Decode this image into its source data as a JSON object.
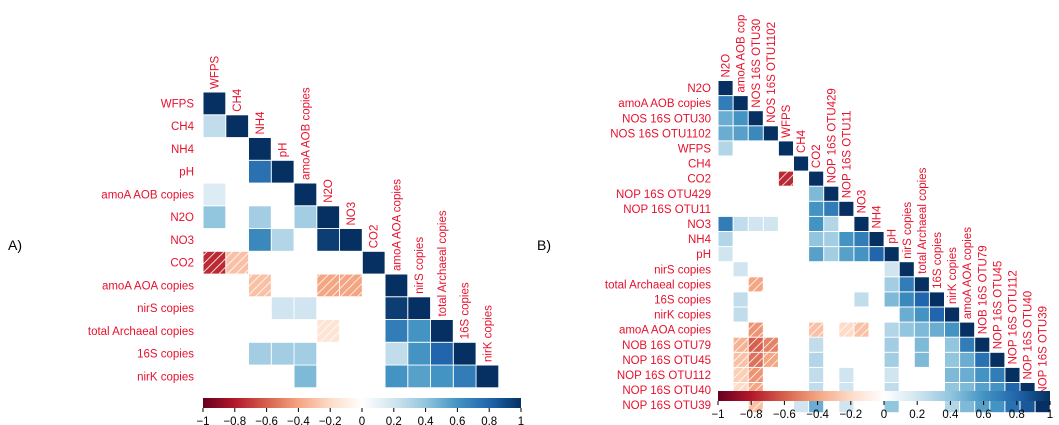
{
  "chart_data": [
    {
      "type": "heatmap",
      "panel_label": "A)",
      "variables": [
        "WFPS",
        "CH4",
        "NH4",
        "pH",
        "amoA AOB copies",
        "N2O",
        "NO3",
        "CO2",
        "amoA AOA copies",
        "nirS copies",
        "total Archaeal copies",
        "16S copies",
        "nirK copies"
      ],
      "colorbar_ticks": [
        "−1",
        "−0.8",
        "−0.6",
        "−0.4",
        "−0.2",
        "0",
        "0.2",
        "0.4",
        "0.6",
        "0.8",
        "1"
      ],
      "color_range": [
        -1,
        1
      ],
      "cells": [
        [
          0,
          0,
          1
        ],
        [
          1,
          1,
          1
        ],
        [
          2,
          2,
          1
        ],
        [
          3,
          3,
          1
        ],
        [
          4,
          4,
          1
        ],
        [
          5,
          5,
          1
        ],
        [
          6,
          6,
          1
        ],
        [
          7,
          7,
          1
        ],
        [
          8,
          8,
          1
        ],
        [
          9,
          9,
          1
        ],
        [
          10,
          10,
          1
        ],
        [
          11,
          11,
          1
        ],
        [
          12,
          12,
          1
        ],
        [
          1,
          0,
          0.25
        ],
        [
          3,
          2,
          0.75
        ],
        [
          4,
          0,
          0.15
        ],
        [
          5,
          0,
          0.4
        ],
        [
          5,
          2,
          0.35
        ],
        [
          5,
          4,
          0.35
        ],
        [
          6,
          2,
          0.65
        ],
        [
          6,
          3,
          0.3
        ],
        [
          6,
          5,
          0.95
        ],
        [
          7,
          0,
          -0.75
        ],
        [
          7,
          1,
          -0.3
        ],
        [
          8,
          2,
          -0.3
        ],
        [
          8,
          5,
          -0.4
        ],
        [
          8,
          6,
          -0.4
        ],
        [
          9,
          3,
          0.2
        ],
        [
          9,
          4,
          0.2
        ],
        [
          9,
          8,
          0.95
        ],
        [
          10,
          5,
          -0.15
        ],
        [
          10,
          8,
          0.7
        ],
        [
          10,
          9,
          0.6
        ],
        [
          11,
          2,
          0.35
        ],
        [
          11,
          3,
          0.35
        ],
        [
          11,
          4,
          0.35
        ],
        [
          11,
          8,
          0.25
        ],
        [
          11,
          9,
          0.6
        ],
        [
          11,
          10,
          0.8
        ],
        [
          12,
          4,
          0.45
        ],
        [
          12,
          8,
          0.6
        ],
        [
          12,
          9,
          0.55
        ],
        [
          12,
          10,
          0.6
        ],
        [
          12,
          11,
          0.7
        ]
      ]
    },
    {
      "type": "heatmap",
      "panel_label": "B)",
      "variables": [
        "N2O",
        "amoA AOB copies",
        "NOS 16S OTU30",
        "NOS 16S OTU1102",
        "WFPS",
        "CH4",
        "CO2",
        "NOP 16S OTU429",
        "NOP 16S OTU11",
        "NO3",
        "NH4",
        "pH",
        "nirS copies",
        "total Archaeal copies",
        "16S copies",
        "nirK copies",
        "amoA AOA copies",
        "NOB 16S OTU79",
        "NOP 16S OTU45",
        "NOP 16S OTU112",
        "NOP 16S OTU40",
        "NOP 16S OTU39"
      ],
      "column_labels": [
        "N2O",
        "amoA AOB cop",
        "NOS 16S OTU30",
        "NOS 16S OTU1102",
        "WFPS",
        "CH4",
        "CO2",
        "NOP 16S OTU429",
        "NOP 16S OTU11",
        "NO3",
        "NH4",
        "pH",
        "nirS copies",
        "total Archaeal copies",
        "16S copies",
        "nirK copies",
        "amoA AOA copies",
        "NOB 16S OTU79",
        "NOP 16S OTU45",
        "NOP 16S OTU112",
        "NOP 16S OTU40",
        "NOP 16S OTU39"
      ],
      "colorbar_ticks": [
        "−1",
        "−0.8",
        "−0.6",
        "−0.4",
        "−0.2",
        "0",
        "0.2",
        "0.4",
        "0.6",
        "0.8",
        "1"
      ],
      "color_range": [
        -1,
        1
      ],
      "cells": [
        [
          0,
          0,
          1
        ],
        [
          1,
          1,
          1
        ],
        [
          2,
          2,
          1
        ],
        [
          3,
          3,
          1
        ],
        [
          4,
          4,
          1
        ],
        [
          5,
          5,
          1
        ],
        [
          6,
          6,
          1
        ],
        [
          7,
          7,
          1
        ],
        [
          8,
          8,
          1
        ],
        [
          9,
          9,
          1
        ],
        [
          10,
          10,
          1
        ],
        [
          11,
          11,
          1
        ],
        [
          12,
          12,
          1
        ],
        [
          13,
          13,
          1
        ],
        [
          14,
          14,
          1
        ],
        [
          15,
          15,
          1
        ],
        [
          16,
          16,
          1
        ],
        [
          17,
          17,
          1
        ],
        [
          18,
          18,
          1
        ],
        [
          19,
          19,
          1
        ],
        [
          20,
          20,
          1
        ],
        [
          21,
          21,
          1
        ],
        [
          1,
          0,
          0.7
        ],
        [
          2,
          0,
          0.5
        ],
        [
          2,
          1,
          0.6
        ],
        [
          3,
          0,
          0.5
        ],
        [
          3,
          1,
          0.55
        ],
        [
          3,
          2,
          0.65
        ],
        [
          4,
          0,
          0.3
        ],
        [
          6,
          4,
          -0.75
        ],
        [
          7,
          6,
          0.45
        ],
        [
          8,
          6,
          0.6
        ],
        [
          8,
          7,
          0.7
        ],
        [
          9,
          0,
          0.7
        ],
        [
          9,
          1,
          0.25
        ],
        [
          9,
          2,
          0.2
        ],
        [
          9,
          3,
          0.2
        ],
        [
          9,
          6,
          0.6
        ],
        [
          9,
          7,
          0.3
        ],
        [
          10,
          0,
          0.3
        ],
        [
          10,
          6,
          0.4
        ],
        [
          10,
          7,
          0.35
        ],
        [
          10,
          8,
          0.6
        ],
        [
          10,
          9,
          0.7
        ],
        [
          11,
          0,
          0.2
        ],
        [
          11,
          6,
          0.55
        ],
        [
          11,
          7,
          0.35
        ],
        [
          11,
          8,
          0.55
        ],
        [
          11,
          9,
          0.6
        ],
        [
          11,
          10,
          0.8
        ],
        [
          12,
          1,
          0.2
        ],
        [
          12,
          11,
          0.2
        ],
        [
          13,
          2,
          -0.4
        ],
        [
          13,
          11,
          0.35
        ],
        [
          13,
          12,
          0.7
        ],
        [
          14,
          1,
          0.25
        ],
        [
          14,
          9,
          0.25
        ],
        [
          14,
          11,
          0.45
        ],
        [
          14,
          12,
          0.65
        ],
        [
          14,
          13,
          0.8
        ],
        [
          15,
          1,
          0.25
        ],
        [
          15,
          12,
          0.5
        ],
        [
          15,
          13,
          0.6
        ],
        [
          15,
          14,
          0.8
        ],
        [
          16,
          2,
          -0.45
        ],
        [
          16,
          6,
          -0.3
        ],
        [
          16,
          8,
          -0.2
        ],
        [
          16,
          9,
          -0.3
        ],
        [
          16,
          11,
          0.3
        ],
        [
          16,
          12,
          0.4
        ],
        [
          16,
          13,
          0.45
        ],
        [
          16,
          14,
          0.5
        ],
        [
          16,
          15,
          0.6
        ],
        [
          17,
          1,
          -0.35
        ],
        [
          17,
          2,
          -0.6
        ],
        [
          17,
          3,
          -0.5
        ],
        [
          17,
          6,
          0.25
        ],
        [
          17,
          11,
          0.35
        ],
        [
          17,
          13,
          0.45
        ],
        [
          17,
          15,
          0.4
        ],
        [
          17,
          16,
          0.7
        ],
        [
          18,
          1,
          -0.3
        ],
        [
          18,
          2,
          -0.55
        ],
        [
          18,
          3,
          -0.4
        ],
        [
          18,
          6,
          0.3
        ],
        [
          18,
          11,
          0.35
        ],
        [
          18,
          13,
          0.45
        ],
        [
          18,
          15,
          0.4
        ],
        [
          18,
          16,
          0.5
        ],
        [
          18,
          17,
          0.75
        ],
        [
          19,
          1,
          -0.25
        ],
        [
          19,
          2,
          -0.45
        ],
        [
          19,
          6,
          0.25
        ],
        [
          19,
          8,
          0.2
        ],
        [
          19,
          11,
          0.2
        ],
        [
          19,
          15,
          0.45
        ],
        [
          19,
          16,
          0.5
        ],
        [
          19,
          17,
          0.6
        ],
        [
          19,
          18,
          0.7
        ],
        [
          20,
          1,
          -0.2
        ],
        [
          20,
          2,
          -0.4
        ],
        [
          20,
          6,
          0.25
        ],
        [
          20,
          8,
          0.2
        ],
        [
          20,
          11,
          0.25
        ],
        [
          20,
          15,
          0.4
        ],
        [
          20,
          16,
          0.45
        ],
        [
          20,
          17,
          0.55
        ],
        [
          20,
          18,
          0.6
        ],
        [
          20,
          19,
          0.8
        ],
        [
          21,
          2,
          -0.3
        ],
        [
          21,
          5,
          0.2
        ],
        [
          21,
          6,
          0.5
        ],
        [
          21,
          8,
          0.2
        ],
        [
          21,
          11,
          0.4
        ],
        [
          21,
          15,
          0.3
        ],
        [
          21,
          16,
          0.45
        ],
        [
          21,
          17,
          0.55
        ],
        [
          21,
          18,
          0.6
        ],
        [
          21,
          19,
          0.75
        ],
        [
          21,
          20,
          0.85
        ]
      ]
    }
  ]
}
